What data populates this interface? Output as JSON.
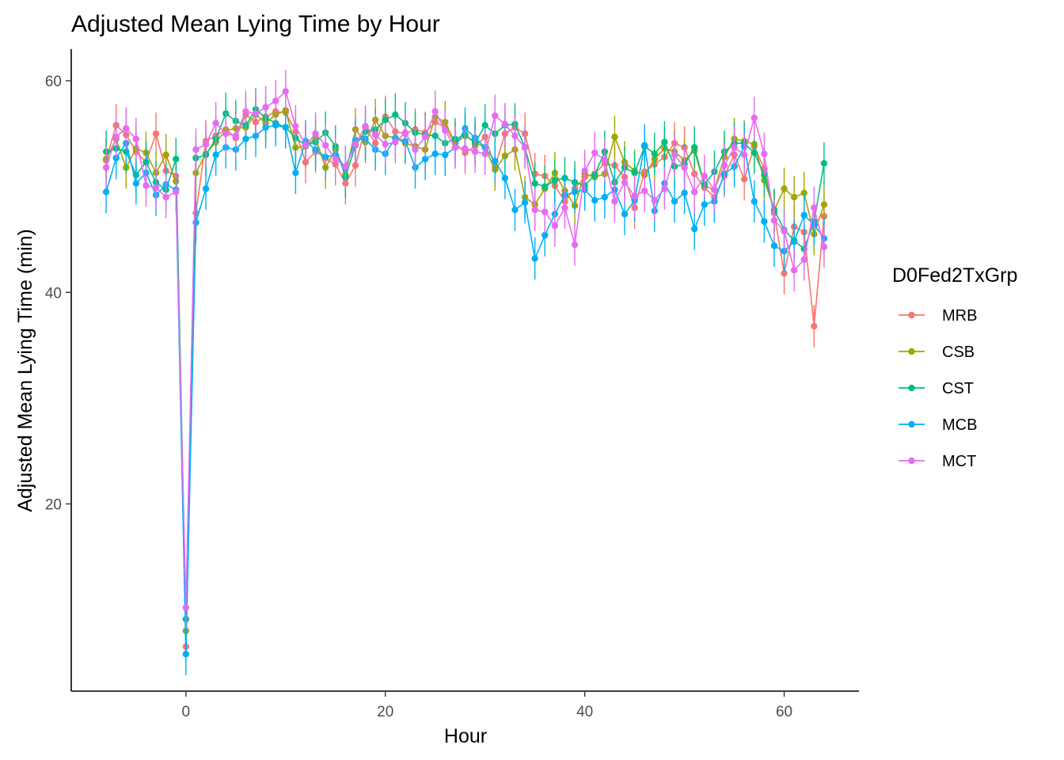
{
  "chart_data": {
    "type": "line",
    "title": "Adjusted Mean Lying Time by Hour",
    "xlabel": "Hour",
    "ylabel": "Adjusted Mean Lying Time (min)",
    "xlim": [
      -11.5,
      67.5
    ],
    "ylim": [
      2.3,
      63.0
    ],
    "xticks": [
      0,
      20,
      40,
      60
    ],
    "yticks": [
      20,
      40,
      60
    ],
    "grid": false,
    "legend": {
      "title": "D0Fed2TxGrp",
      "position": "right"
    },
    "x": [
      -8,
      -7,
      -6,
      -5,
      -4,
      -3,
      -2,
      -1,
      0,
      1,
      2,
      3,
      4,
      5,
      6,
      7,
      8,
      9,
      10,
      11,
      12,
      13,
      14,
      15,
      16,
      17,
      18,
      19,
      20,
      21,
      22,
      23,
      24,
      25,
      26,
      27,
      28,
      29,
      30,
      31,
      32,
      33,
      34,
      35,
      36,
      37,
      38,
      39,
      40,
      41,
      42,
      43,
      44,
      45,
      46,
      47,
      48,
      49,
      50,
      51,
      52,
      53,
      54,
      55,
      56,
      57,
      58,
      59,
      60,
      61,
      62,
      63,
      64
    ],
    "error_bar_halfwidth": 2.0,
    "series": [
      {
        "name": "MRB",
        "color": "#F8766D",
        "values": [
          52.5,
          55.8,
          54.9,
          53.3,
          52.3,
          55.0,
          51.5,
          51.0,
          6.5,
          47.5,
          54.3,
          54.8,
          55.4,
          54.6,
          56.8,
          56.1,
          56.6,
          57.1,
          57.0,
          55.2,
          52.3,
          53.3,
          52.7,
          52.1,
          50.3,
          52.0,
          55.6,
          54.1,
          56.6,
          55.2,
          55.0,
          55.4,
          55.1,
          56.1,
          55.6,
          54.1,
          53.2,
          53.8,
          54.7,
          51.9,
          55.0,
          55.6,
          55.0,
          51.2,
          51.0,
          50.1,
          48.6,
          49.8,
          50.9,
          51.2,
          52.2,
          52.0,
          50.9,
          48.0,
          51.4,
          52.1,
          52.8,
          54.1,
          53.7,
          51.2,
          49.9,
          49.0,
          51.0,
          53.0,
          50.7,
          53.8,
          51.7,
          47.5,
          41.8,
          46.2,
          45.7,
          36.8,
          47.2
        ]
      },
      {
        "name": "CSB",
        "color": "#A3A500",
        "values": [
          52.6,
          54.5,
          51.8,
          53.6,
          53.2,
          51.3,
          53.0,
          50.5,
          8.0,
          51.3,
          53.1,
          54.2,
          55.3,
          55.5,
          55.6,
          56.8,
          56.0,
          56.8,
          57.2,
          53.7,
          53.8,
          54.6,
          51.8,
          53.5,
          51.1,
          55.4,
          54.2,
          56.3,
          54.8,
          54.6,
          54.1,
          53.8,
          53.5,
          56.6,
          56.1,
          54.1,
          54.8,
          54.2,
          53.7,
          51.6,
          52.9,
          53.5,
          49.0,
          48.3,
          49.8,
          51.3,
          49.6,
          48.2,
          51.2,
          50.9,
          51.2,
          54.7,
          52.3,
          51.5,
          51.1,
          52.6,
          53.6,
          53.3,
          52.5,
          53.4,
          50.1,
          49.7,
          52.8,
          54.5,
          54.3,
          54.0,
          50.6,
          47.8,
          49.8,
          49.0,
          49.4,
          45.5,
          48.3
        ]
      },
      {
        "name": "CST",
        "color": "#00BF7D",
        "values": [
          53.3,
          53.6,
          53.3,
          51.1,
          52.3,
          50.4,
          49.7,
          52.6,
          9.1,
          52.7,
          53.0,
          54.5,
          56.9,
          56.2,
          55.8,
          57.3,
          56.5,
          56.0,
          55.6,
          54.6,
          53.9,
          54.2,
          55.1,
          53.8,
          50.9,
          53.9,
          55.2,
          55.4,
          56.3,
          56.8,
          56.0,
          55.1,
          54.9,
          54.8,
          54.1,
          54.5,
          54.9,
          54.1,
          55.8,
          55.0,
          55.8,
          55.9,
          53.7,
          50.3,
          50.0,
          50.6,
          50.8,
          50.4,
          50.1,
          51.1,
          53.3,
          50.4,
          51.8,
          51.3,
          53.8,
          53.1,
          54.2,
          51.9,
          52.1,
          53.7,
          50.2,
          51.4,
          53.3,
          54.1,
          54.1,
          53.2,
          51.1,
          47.8,
          45.9,
          44.9,
          44.1,
          46.7,
          52.2
        ]
      },
      {
        "name": "MCB",
        "color": "#00B0F6",
        "values": [
          49.5,
          52.7,
          54.1,
          50.3,
          51.3,
          49.2,
          50.2,
          49.7,
          5.8,
          46.6,
          49.8,
          53.0,
          53.7,
          53.5,
          54.5,
          54.8,
          55.6,
          55.8,
          55.6,
          51.3,
          54.3,
          53.5,
          52.8,
          53.0,
          51.8,
          54.4,
          54.5,
          53.5,
          53.1,
          54.6,
          54.3,
          51.8,
          52.6,
          53.1,
          53.0,
          53.7,
          55.5,
          54.6,
          53.7,
          52.4,
          50.8,
          47.8,
          48.5,
          43.2,
          45.4,
          47.4,
          49.2,
          49.5,
          49.7,
          48.7,
          49.0,
          49.7,
          47.4,
          48.7,
          53.9,
          47.7,
          50.3,
          48.6,
          49.4,
          46.0,
          48.3,
          48.6,
          51.2,
          51.9,
          53.8,
          48.6,
          46.7,
          44.4,
          43.9,
          44.8,
          47.3,
          46.4,
          45.1
        ]
      },
      {
        "name": "MCT",
        "color": "#E76BF3",
        "values": [
          51.8,
          54.7,
          55.5,
          54.5,
          50.1,
          49.9,
          49.0,
          49.5,
          10.2,
          53.5,
          54.0,
          56.0,
          55.0,
          54.8,
          57.1,
          56.9,
          57.5,
          58.1,
          59.0,
          55.7,
          53.9,
          55.0,
          53.9,
          52.6,
          51.9,
          54.0,
          55.7,
          54.9,
          54.0,
          54.2,
          55.1,
          53.5,
          54.7,
          57.1,
          55.3,
          53.7,
          53.6,
          53.3,
          53.1,
          56.7,
          55.9,
          54.8,
          53.7,
          47.8,
          47.6,
          46.3,
          48.0,
          44.5,
          51.5,
          53.2,
          52.5,
          48.6,
          50.4,
          49.1,
          49.6,
          48.7,
          49.8,
          53.0,
          51.8,
          49.5,
          51.0,
          49.7,
          52.0,
          53.7,
          53.0,
          56.5,
          53.1,
          46.8,
          45.8,
          42.1,
          43.1,
          48.0,
          44.3
        ]
      }
    ]
  }
}
